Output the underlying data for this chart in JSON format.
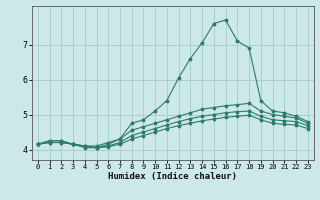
{
  "xlabel": "Humidex (Indice chaleur)",
  "ylabel": "",
  "xlim": [
    -0.5,
    23.5
  ],
  "ylim": [
    3.7,
    8.1
  ],
  "bg_color": "#cce8e8",
  "line_color": "#2e7b6e",
  "grid_color": "#aacece",
  "xticks": [
    0,
    1,
    2,
    3,
    4,
    5,
    6,
    7,
    8,
    9,
    10,
    11,
    12,
    13,
    14,
    15,
    16,
    17,
    18,
    19,
    20,
    21,
    22,
    23
  ],
  "yticks": [
    4,
    5,
    6,
    7
  ],
  "lines": [
    {
      "x": [
        0,
        1,
        2,
        3,
        4,
        5,
        6,
        7,
        8,
        9,
        10,
        11,
        12,
        13,
        14,
        15,
        16,
        17,
        18,
        19,
        20,
        21,
        22,
        23
      ],
      "y": [
        4.15,
        4.25,
        4.25,
        4.15,
        4.05,
        4.05,
        4.15,
        4.3,
        4.75,
        4.85,
        5.1,
        5.4,
        6.05,
        6.6,
        7.05,
        7.6,
        7.7,
        7.1,
        6.9,
        5.4,
        5.1,
        5.05,
        4.95,
        4.8
      ]
    },
    {
      "x": [
        0,
        1,
        2,
        3,
        4,
        5,
        6,
        7,
        8,
        9,
        10,
        11,
        12,
        13,
        14,
        15,
        16,
        17,
        18,
        19,
        20,
        21,
        22,
        23
      ],
      "y": [
        4.15,
        4.25,
        4.25,
        4.15,
        4.1,
        4.1,
        4.2,
        4.3,
        4.55,
        4.65,
        4.75,
        4.85,
        4.95,
        5.05,
        5.15,
        5.2,
        5.25,
        5.28,
        5.32,
        5.1,
        5.0,
        4.95,
        4.9,
        4.75
      ]
    },
    {
      "x": [
        0,
        1,
        2,
        3,
        4,
        5,
        6,
        7,
        8,
        9,
        10,
        11,
        12,
        13,
        14,
        15,
        16,
        17,
        18,
        19,
        20,
        21,
        22,
        23
      ],
      "y": [
        4.15,
        4.2,
        4.2,
        4.15,
        4.1,
        4.05,
        4.1,
        4.2,
        4.4,
        4.5,
        4.6,
        4.7,
        4.8,
        4.88,
        4.95,
        5.0,
        5.05,
        5.08,
        5.1,
        4.95,
        4.85,
        4.82,
        4.8,
        4.68
      ]
    },
    {
      "x": [
        0,
        1,
        2,
        3,
        4,
        5,
        6,
        7,
        8,
        9,
        10,
        11,
        12,
        13,
        14,
        15,
        16,
        17,
        18,
        19,
        20,
        21,
        22,
        23
      ],
      "y": [
        4.15,
        4.2,
        4.2,
        4.15,
        4.1,
        4.05,
        4.08,
        4.15,
        4.3,
        4.4,
        4.5,
        4.6,
        4.68,
        4.75,
        4.82,
        4.87,
        4.92,
        4.95,
        4.98,
        4.85,
        4.75,
        4.72,
        4.7,
        4.6
      ]
    }
  ]
}
